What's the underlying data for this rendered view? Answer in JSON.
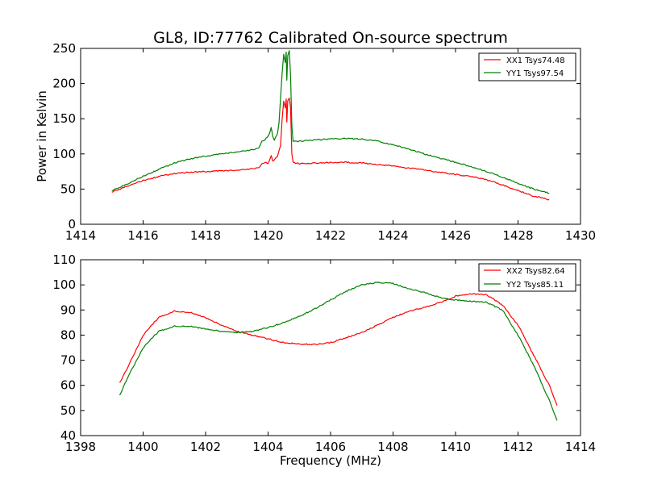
{
  "figure": {
    "title": "GL8, ID:77762 Calibrated On-source spectrum",
    "xlabel": "Frequency (MHz)"
  },
  "chart_data": [
    {
      "type": "line",
      "title": "GL8, ID:77762 Calibrated On-source spectrum",
      "xlabel": "",
      "ylabel": "Power in Kelvin",
      "xlim": [
        1414,
        1430
      ],
      "ylim": [
        0,
        250
      ],
      "xticks": [
        1414,
        1416,
        1418,
        1420,
        1422,
        1424,
        1426,
        1428,
        1430
      ],
      "yticks": [
        0,
        50,
        100,
        150,
        200,
        250
      ],
      "grid": false,
      "legend_position": "top-right",
      "series": [
        {
          "name": "XX1 Tsys74.48",
          "color": "#ff0000",
          "points": [
            [
              1415.0,
              46
            ],
            [
              1415.5,
              54
            ],
            [
              1416.0,
              62
            ],
            [
              1416.5,
              68
            ],
            [
              1417.0,
              72
            ],
            [
              1417.5,
              74
            ],
            [
              1418.0,
              75
            ],
            [
              1418.5,
              76
            ],
            [
              1419.0,
              77
            ],
            [
              1419.5,
              79
            ],
            [
              1419.7,
              80
            ],
            [
              1419.8,
              86
            ],
            [
              1419.9,
              88
            ],
            [
              1420.0,
              86
            ],
            [
              1420.05,
              92
            ],
            [
              1420.1,
              98
            ],
            [
              1420.15,
              90
            ],
            [
              1420.2,
              92
            ],
            [
              1420.3,
              96
            ],
            [
              1420.4,
              112
            ],
            [
              1420.45,
              150
            ],
            [
              1420.5,
              175
            ],
            [
              1420.55,
              165
            ],
            [
              1420.58,
              178
            ],
            [
              1420.6,
              145
            ],
            [
              1420.63,
              176
            ],
            [
              1420.68,
              180
            ],
            [
              1420.72,
              165
            ],
            [
              1420.76,
              100
            ],
            [
              1420.8,
              88
            ],
            [
              1421.0,
              86
            ],
            [
              1421.5,
              87
            ],
            [
              1422.0,
              88
            ],
            [
              1422.5,
              88
            ],
            [
              1423.0,
              87
            ],
            [
              1423.5,
              85
            ],
            [
              1424.0,
              83
            ],
            [
              1424.5,
              80
            ],
            [
              1425.0,
              77
            ],
            [
              1425.5,
              74
            ],
            [
              1426.0,
              71
            ],
            [
              1426.5,
              68
            ],
            [
              1427.0,
              63
            ],
            [
              1427.5,
              56
            ],
            [
              1428.0,
              48
            ],
            [
              1428.5,
              40
            ],
            [
              1429.0,
              35
            ]
          ]
        },
        {
          "name": "YY1 Tsys97.54",
          "color": "#008000",
          "points": [
            [
              1415.0,
              48
            ],
            [
              1415.5,
              57
            ],
            [
              1416.0,
              68
            ],
            [
              1416.5,
              78
            ],
            [
              1417.0,
              87
            ],
            [
              1417.5,
              93
            ],
            [
              1418.0,
              97
            ],
            [
              1418.5,
              100
            ],
            [
              1419.0,
              103
            ],
            [
              1419.5,
              106
            ],
            [
              1419.7,
              108
            ],
            [
              1419.8,
              118
            ],
            [
              1419.9,
              120
            ],
            [
              1420.0,
              125
            ],
            [
              1420.05,
              130
            ],
            [
              1420.1,
              138
            ],
            [
              1420.15,
              125
            ],
            [
              1420.2,
              120
            ],
            [
              1420.3,
              128
            ],
            [
              1420.35,
              145
            ],
            [
              1420.4,
              180
            ],
            [
              1420.45,
              215
            ],
            [
              1420.5,
              242
            ],
            [
              1420.55,
              230
            ],
            [
              1420.58,
              244
            ],
            [
              1420.6,
              205
            ],
            [
              1420.63,
              240
            ],
            [
              1420.68,
              247
            ],
            [
              1420.72,
              210
            ],
            [
              1420.76,
              140
            ],
            [
              1420.8,
              118
            ],
            [
              1421.0,
              118
            ],
            [
              1421.5,
              120
            ],
            [
              1422.0,
              121
            ],
            [
              1422.5,
              122
            ],
            [
              1423.0,
              121
            ],
            [
              1423.5,
              118
            ],
            [
              1424.0,
              113
            ],
            [
              1424.5,
              107
            ],
            [
              1425.0,
              100
            ],
            [
              1425.5,
              94
            ],
            [
              1426.0,
              88
            ],
            [
              1426.5,
              82
            ],
            [
              1427.0,
              75
            ],
            [
              1427.5,
              67
            ],
            [
              1428.0,
              58
            ],
            [
              1428.5,
              50
            ],
            [
              1429.0,
              44
            ]
          ]
        }
      ]
    },
    {
      "type": "line",
      "title": "",
      "xlabel": "Frequency (MHz)",
      "ylabel": "",
      "xlim": [
        1398,
        1414
      ],
      "ylim": [
        40,
        110
      ],
      "xticks": [
        1398,
        1400,
        1402,
        1404,
        1406,
        1408,
        1410,
        1412,
        1414
      ],
      "yticks": [
        40,
        50,
        60,
        70,
        80,
        90,
        100,
        110
      ],
      "grid": false,
      "legend_position": "top-right",
      "series": [
        {
          "name": "XX2 Tsys82.64",
          "color": "#ff0000",
          "points": [
            [
              1399.25,
              61
            ],
            [
              1399.5,
              67
            ],
            [
              1400.0,
              80
            ],
            [
              1400.5,
              87
            ],
            [
              1401.0,
              89.5
            ],
            [
              1401.5,
              89
            ],
            [
              1402.0,
              87
            ],
            [
              1402.5,
              84
            ],
            [
              1403.0,
              81.5
            ],
            [
              1403.5,
              80
            ],
            [
              1404.0,
              78.5
            ],
            [
              1404.5,
              77
            ],
            [
              1405.0,
              76.5
            ],
            [
              1405.5,
              76.3
            ],
            [
              1406.0,
              77
            ],
            [
              1406.5,
              79
            ],
            [
              1407.0,
              81
            ],
            [
              1407.5,
              84
            ],
            [
              1408.0,
              87
            ],
            [
              1408.5,
              89.5
            ],
            [
              1409.0,
              91
            ],
            [
              1409.5,
              93
            ],
            [
              1410.0,
              95.5
            ],
            [
              1410.5,
              96.5
            ],
            [
              1411.0,
              96
            ],
            [
              1411.5,
              92
            ],
            [
              1412.0,
              84
            ],
            [
              1412.5,
              72
            ],
            [
              1413.0,
              60
            ],
            [
              1413.25,
              52
            ]
          ]
        },
        {
          "name": "YY2 Tsys85.11",
          "color": "#008000",
          "points": [
            [
              1399.25,
              56
            ],
            [
              1399.5,
              63
            ],
            [
              1400.0,
              75
            ],
            [
              1400.5,
              81.5
            ],
            [
              1401.0,
              83.5
            ],
            [
              1401.5,
              83.5
            ],
            [
              1402.0,
              82.5
            ],
            [
              1402.5,
              81.5
            ],
            [
              1403.0,
              81
            ],
            [
              1403.5,
              81.5
            ],
            [
              1404.0,
              83
            ],
            [
              1404.5,
              85
            ],
            [
              1405.0,
              87.5
            ],
            [
              1405.5,
              90.5
            ],
            [
              1406.0,
              94
            ],
            [
              1406.5,
              97.5
            ],
            [
              1407.0,
              100
            ],
            [
              1407.5,
              101
            ],
            [
              1408.0,
              100.5
            ],
            [
              1408.5,
              98.5
            ],
            [
              1409.0,
              97
            ],
            [
              1409.5,
              95
            ],
            [
              1410.0,
              94
            ],
            [
              1410.5,
              93.5
            ],
            [
              1411.0,
              93
            ],
            [
              1411.5,
              90
            ],
            [
              1412.0,
              80
            ],
            [
              1412.5,
              68
            ],
            [
              1413.0,
              54
            ],
            [
              1413.25,
              46
            ]
          ]
        }
      ]
    }
  ]
}
